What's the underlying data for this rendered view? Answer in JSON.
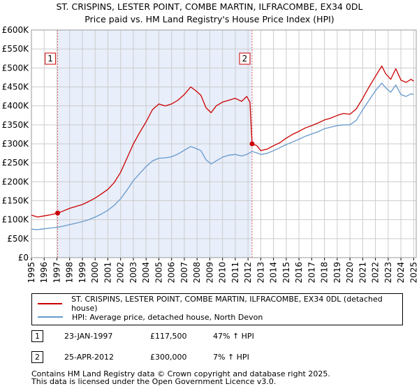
{
  "chart_data": {
    "type": "line",
    "title": "ST. CRISPINS, LESTER POINT, COMBE MARTIN, ILFRACOMBE, EX34 0DL",
    "subtitle": "Price paid vs. HM Land Registry's House Price Index (HPI)",
    "xlabel": "",
    "ylabel": "",
    "xlim": [
      1995,
      2025.2
    ],
    "ylim": [
      0,
      600000
    ],
    "x_ticks": [
      "1995",
      "1996",
      "1997",
      "1998",
      "1999",
      "2000",
      "2001",
      "2002",
      "2003",
      "2004",
      "2005",
      "2006",
      "2007",
      "2008",
      "2009",
      "2010",
      "2011",
      "2012",
      "2013",
      "2014",
      "2015",
      "2016",
      "2017",
      "2018",
      "2019",
      "2020",
      "2021",
      "2022",
      "2023",
      "2024",
      "2025"
    ],
    "y_ticks": [
      "£0",
      "£50K",
      "£100K",
      "£150K",
      "£200K",
      "£250K",
      "£300K",
      "£350K",
      "£400K",
      "£450K",
      "£500K",
      "£550K",
      "£600K"
    ],
    "grid": true,
    "series": [
      {
        "name": "ST. CRISPINS, LESTER POINT, COMBE MARTIN, ILFRACOMBE, EX34 0DL (detached house)",
        "color": "#cc0000",
        "points": [
          [
            1995.0,
            112000
          ],
          [
            1995.5,
            107000
          ],
          [
            1996.0,
            110000
          ],
          [
            1996.5,
            113000
          ],
          [
            1997.06,
            117500
          ],
          [
            1997.5,
            123000
          ],
          [
            1998.0,
            130000
          ],
          [
            1998.5,
            135000
          ],
          [
            1999.0,
            140000
          ],
          [
            1999.5,
            148000
          ],
          [
            2000.0,
            157000
          ],
          [
            2000.5,
            168000
          ],
          [
            2001.0,
            180000
          ],
          [
            2001.5,
            198000
          ],
          [
            2002.0,
            225000
          ],
          [
            2002.5,
            262000
          ],
          [
            2003.0,
            300000
          ],
          [
            2003.5,
            330000
          ],
          [
            2004.0,
            358000
          ],
          [
            2004.5,
            390000
          ],
          [
            2005.0,
            405000
          ],
          [
            2005.5,
            400000
          ],
          [
            2006.0,
            405000
          ],
          [
            2006.5,
            415000
          ],
          [
            2007.0,
            430000
          ],
          [
            2007.5,
            450000
          ],
          [
            2007.9,
            440000
          ],
          [
            2008.3,
            428000
          ],
          [
            2008.7,
            395000
          ],
          [
            2009.1,
            382000
          ],
          [
            2009.5,
            400000
          ],
          [
            2010.0,
            410000
          ],
          [
            2010.5,
            415000
          ],
          [
            2011.0,
            420000
          ],
          [
            2011.5,
            412000
          ],
          [
            2011.9,
            425000
          ],
          [
            2012.15,
            410000
          ],
          [
            2012.32,
            300000
          ],
          [
            2012.7,
            295000
          ],
          [
            2013.0,
            282000
          ],
          [
            2013.5,
            286000
          ],
          [
            2014.0,
            295000
          ],
          [
            2014.5,
            303000
          ],
          [
            2015.0,
            315000
          ],
          [
            2015.5,
            325000
          ],
          [
            2016.0,
            333000
          ],
          [
            2016.5,
            342000
          ],
          [
            2017.0,
            348000
          ],
          [
            2017.5,
            355000
          ],
          [
            2018.0,
            363000
          ],
          [
            2018.5,
            368000
          ],
          [
            2019.0,
            375000
          ],
          [
            2019.5,
            380000
          ],
          [
            2020.0,
            378000
          ],
          [
            2020.5,
            392000
          ],
          [
            2021.0,
            420000
          ],
          [
            2021.5,
            450000
          ],
          [
            2022.0,
            478000
          ],
          [
            2022.5,
            505000
          ],
          [
            2022.8,
            485000
          ],
          [
            2023.2,
            470000
          ],
          [
            2023.6,
            498000
          ],
          [
            2024.0,
            468000
          ],
          [
            2024.4,
            462000
          ],
          [
            2024.8,
            470000
          ],
          [
            2025.0,
            465000
          ]
        ]
      },
      {
        "name": "HPI: Average price, detached house, North Devon",
        "color": "#6699cc",
        "points": [
          [
            1995.0,
            75000
          ],
          [
            1995.5,
            74000
          ],
          [
            1996.0,
            76000
          ],
          [
            1996.5,
            78000
          ],
          [
            1997.06,
            80000
          ],
          [
            1997.5,
            83000
          ],
          [
            1998.0,
            87000
          ],
          [
            1998.5,
            91000
          ],
          [
            1999.0,
            95000
          ],
          [
            1999.5,
            100000
          ],
          [
            2000.0,
            107000
          ],
          [
            2000.5,
            115000
          ],
          [
            2001.0,
            125000
          ],
          [
            2001.5,
            138000
          ],
          [
            2002.0,
            155000
          ],
          [
            2002.5,
            178000
          ],
          [
            2003.0,
            203000
          ],
          [
            2003.5,
            222000
          ],
          [
            2004.0,
            240000
          ],
          [
            2004.5,
            255000
          ],
          [
            2005.0,
            262000
          ],
          [
            2005.5,
            263000
          ],
          [
            2006.0,
            266000
          ],
          [
            2006.5,
            273000
          ],
          [
            2007.0,
            283000
          ],
          [
            2007.5,
            293000
          ],
          [
            2007.9,
            288000
          ],
          [
            2008.3,
            282000
          ],
          [
            2008.7,
            258000
          ],
          [
            2009.1,
            247000
          ],
          [
            2009.5,
            255000
          ],
          [
            2010.0,
            265000
          ],
          [
            2010.5,
            270000
          ],
          [
            2011.0,
            272000
          ],
          [
            2011.5,
            268000
          ],
          [
            2011.9,
            272000
          ],
          [
            2012.32,
            280000
          ],
          [
            2012.7,
            276000
          ],
          [
            2013.0,
            272000
          ],
          [
            2013.5,
            275000
          ],
          [
            2014.0,
            282000
          ],
          [
            2014.5,
            290000
          ],
          [
            2015.0,
            298000
          ],
          [
            2015.5,
            305000
          ],
          [
            2016.0,
            312000
          ],
          [
            2016.5,
            320000
          ],
          [
            2017.0,
            326000
          ],
          [
            2017.5,
            332000
          ],
          [
            2018.0,
            340000
          ],
          [
            2018.5,
            344000
          ],
          [
            2019.0,
            348000
          ],
          [
            2019.5,
            350000
          ],
          [
            2020.0,
            350000
          ],
          [
            2020.5,
            362000
          ],
          [
            2021.0,
            390000
          ],
          [
            2021.5,
            415000
          ],
          [
            2022.0,
            440000
          ],
          [
            2022.5,
            460000
          ],
          [
            2022.8,
            448000
          ],
          [
            2023.2,
            436000
          ],
          [
            2023.6,
            455000
          ],
          [
            2024.0,
            430000
          ],
          [
            2024.4,
            425000
          ],
          [
            2024.8,
            432000
          ],
          [
            2025.0,
            430000
          ]
        ]
      }
    ],
    "markers": [
      {
        "label": "1",
        "x": 1997.06,
        "y": 117500
      },
      {
        "label": "2",
        "x": 2012.32,
        "y": 300000
      }
    ],
    "shaded_range": [
      1997.06,
      2012.32
    ]
  },
  "legend": {
    "property_label": "ST. CRISPINS, LESTER POINT, COMBE MARTIN, ILFRACOMBE, EX34 0DL (detached house)",
    "hpi_label": "HPI: Average price, detached house, North Devon"
  },
  "transactions": [
    {
      "badge": "1",
      "date": "23-JAN-1997",
      "price": "£117,500",
      "hpi": "47% ↑ HPI"
    },
    {
      "badge": "2",
      "date": "25-APR-2012",
      "price": "£300,000",
      "hpi": "7% ↑ HPI"
    }
  ],
  "footer": {
    "line1": "Contains HM Land Registry data © Crown copyright and database right 2025.",
    "line2": "This data is licensed under the Open Government Licence v3.0."
  },
  "colors": {
    "property": "#cc0000",
    "hpi": "#6699cc",
    "shade": "#e8eefa",
    "grid": "#cccccc",
    "marker_line": "#e06666"
  }
}
